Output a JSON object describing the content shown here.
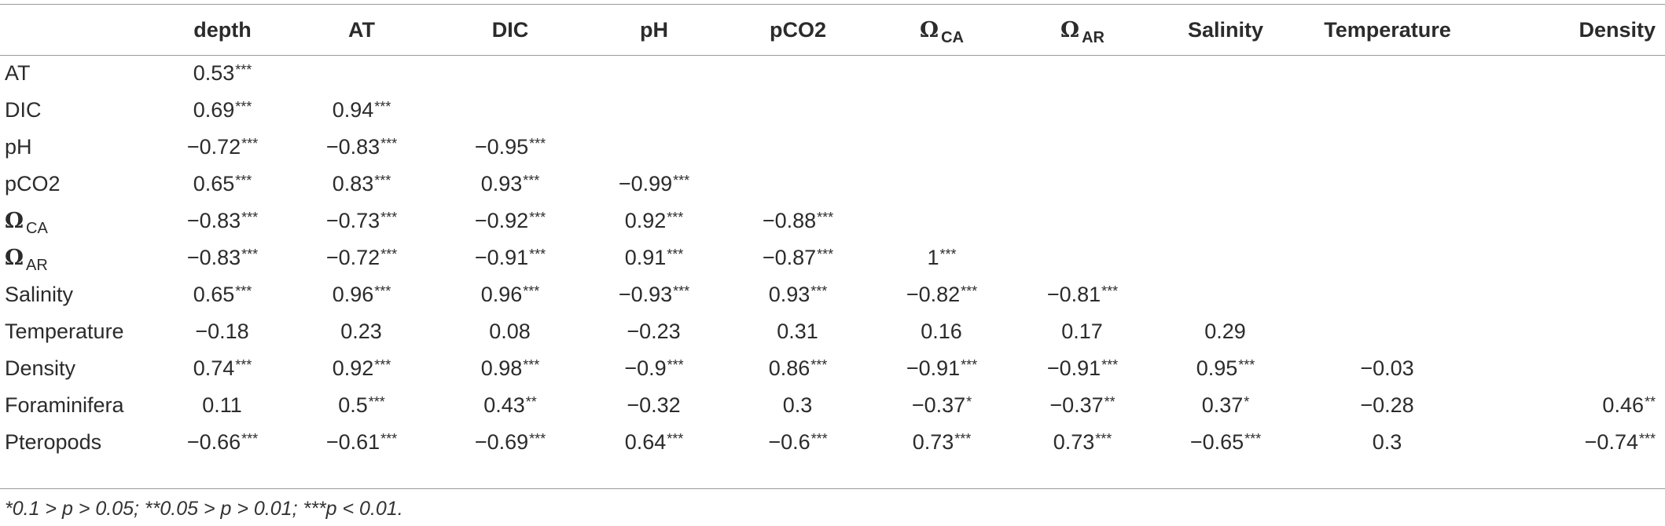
{
  "table": {
    "corner": "",
    "columns": [
      {
        "key": "depth",
        "label": "depth"
      },
      {
        "key": "at",
        "label": "AT"
      },
      {
        "key": "dic",
        "label": "DIC"
      },
      {
        "key": "ph",
        "label": "pH"
      },
      {
        "key": "pco2",
        "label": "pCO2"
      },
      {
        "key": "omega_ca",
        "label": "Ω",
        "sub": "CA"
      },
      {
        "key": "omega_ar",
        "label": "Ω",
        "sub": "AR"
      },
      {
        "key": "salinity",
        "label": "Salinity"
      },
      {
        "key": "temperature",
        "label": "Temperature"
      },
      {
        "key": "density",
        "label": "Density"
      }
    ],
    "rows": [
      {
        "label": "AT",
        "cells": [
          [
            "0.53",
            "***"
          ],
          [
            "",
            ""
          ],
          [
            "",
            ""
          ],
          [
            "",
            ""
          ],
          [
            "",
            ""
          ],
          [
            "",
            ""
          ],
          [
            "",
            ""
          ],
          [
            "",
            ""
          ],
          [
            "",
            ""
          ],
          [
            "",
            ""
          ]
        ]
      },
      {
        "label": "DIC",
        "cells": [
          [
            "0.69",
            "***"
          ],
          [
            "0.94",
            "***"
          ],
          [
            "",
            ""
          ],
          [
            "",
            ""
          ],
          [
            "",
            ""
          ],
          [
            "",
            ""
          ],
          [
            "",
            ""
          ],
          [
            "",
            ""
          ],
          [
            "",
            ""
          ],
          [
            "",
            ""
          ]
        ]
      },
      {
        "label": "pH",
        "cells": [
          [
            "−0.72",
            "***"
          ],
          [
            "−0.83",
            "***"
          ],
          [
            "−0.95",
            "***"
          ],
          [
            "",
            ""
          ],
          [
            "",
            ""
          ],
          [
            "",
            ""
          ],
          [
            "",
            ""
          ],
          [
            "",
            ""
          ],
          [
            "",
            ""
          ],
          [
            "",
            ""
          ]
        ]
      },
      {
        "label": "pCO2",
        "cells": [
          [
            "0.65",
            "***"
          ],
          [
            "0.83",
            "***"
          ],
          [
            "0.93",
            "***"
          ],
          [
            "−0.99",
            "***"
          ],
          [
            "",
            ""
          ],
          [
            "",
            ""
          ],
          [
            "",
            ""
          ],
          [
            "",
            ""
          ],
          [
            "",
            ""
          ],
          [
            "",
            ""
          ]
        ]
      },
      {
        "label": "Ω",
        "sub": "CA",
        "cells": [
          [
            "−0.83",
            "***"
          ],
          [
            "−0.73",
            "***"
          ],
          [
            "−0.92",
            "***"
          ],
          [
            "0.92",
            "***"
          ],
          [
            "−0.88",
            "***"
          ],
          [
            "",
            ""
          ],
          [
            "",
            ""
          ],
          [
            "",
            ""
          ],
          [
            "",
            ""
          ],
          [
            "",
            ""
          ]
        ]
      },
      {
        "label": "Ω",
        "sub": "AR",
        "cells": [
          [
            "−0.83",
            "***"
          ],
          [
            "−0.72",
            "***"
          ],
          [
            "−0.91",
            "***"
          ],
          [
            "0.91",
            "***"
          ],
          [
            "−0.87",
            "***"
          ],
          [
            "1",
            "***"
          ],
          [
            "",
            ""
          ],
          [
            "",
            ""
          ],
          [
            "",
            ""
          ],
          [
            "",
            ""
          ]
        ]
      },
      {
        "label": "Salinity",
        "cells": [
          [
            "0.65",
            "***"
          ],
          [
            "0.96",
            "***"
          ],
          [
            "0.96",
            "***"
          ],
          [
            "−0.93",
            "***"
          ],
          [
            "0.93",
            "***"
          ],
          [
            "−0.82",
            "***"
          ],
          [
            "−0.81",
            "***"
          ],
          [
            "",
            ""
          ],
          [
            "",
            ""
          ],
          [
            "",
            ""
          ]
        ]
      },
      {
        "label": "Temperature",
        "cells": [
          [
            "−0.18",
            ""
          ],
          [
            "0.23",
            ""
          ],
          [
            "0.08",
            ""
          ],
          [
            "−0.23",
            ""
          ],
          [
            "0.31",
            ""
          ],
          [
            "0.16",
            ""
          ],
          [
            "0.17",
            ""
          ],
          [
            "0.29",
            ""
          ],
          [
            "",
            ""
          ],
          [
            "",
            ""
          ]
        ]
      },
      {
        "label": "Density",
        "cells": [
          [
            "0.74",
            "***"
          ],
          [
            "0.92",
            "***"
          ],
          [
            "0.98",
            "***"
          ],
          [
            "−0.9",
            "***"
          ],
          [
            "0.86",
            "***"
          ],
          [
            "−0.91",
            "***"
          ],
          [
            "−0.91",
            "***"
          ],
          [
            "0.95",
            "***"
          ],
          [
            "−0.03",
            ""
          ],
          [
            "",
            ""
          ]
        ]
      },
      {
        "label": "Foraminifera",
        "cells": [
          [
            "0.11",
            ""
          ],
          [
            "0.5",
            "***"
          ],
          [
            "0.43",
            "**"
          ],
          [
            "−0.32",
            ""
          ],
          [
            "0.3",
            ""
          ],
          [
            "−0.37",
            "*"
          ],
          [
            "−0.37",
            "**"
          ],
          [
            "0.37",
            "*"
          ],
          [
            "−0.28",
            ""
          ],
          [
            "0.46",
            "**"
          ]
        ]
      },
      {
        "label": "Pteropods",
        "cells": [
          [
            "−0.66",
            "***"
          ],
          [
            "−0.61",
            "***"
          ],
          [
            "−0.69",
            "***"
          ],
          [
            "0.64",
            "***"
          ],
          [
            "−0.6",
            "***"
          ],
          [
            "0.73",
            "***"
          ],
          [
            "0.73",
            "***"
          ],
          [
            "−0.65",
            "***"
          ],
          [
            "0.3",
            ""
          ],
          [
            "−0.74",
            "***"
          ]
        ]
      }
    ]
  },
  "footnote": "*0.1 > p > 0.05; **0.05 > p > 0.01; ***p < 0.01."
}
